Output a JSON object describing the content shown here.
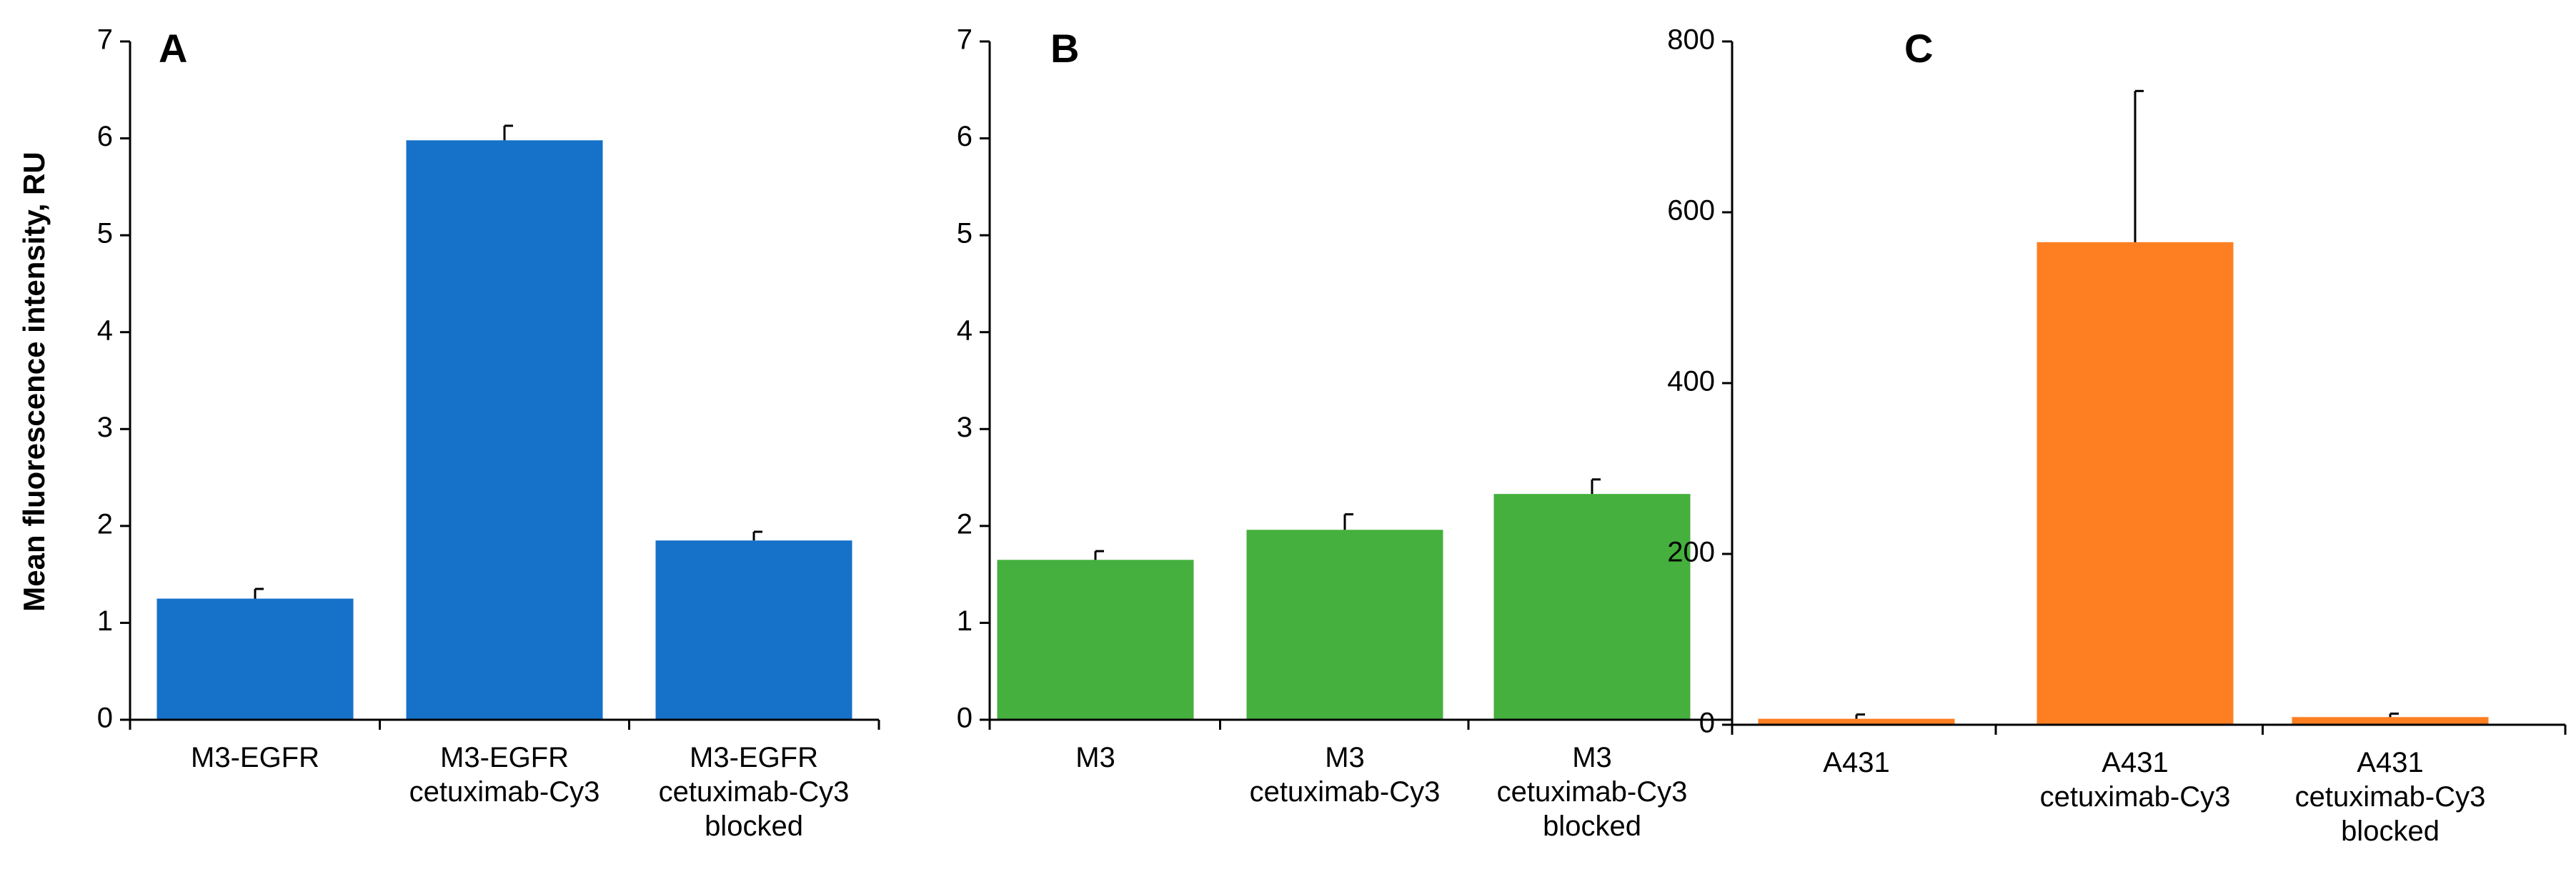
{
  "figure": {
    "ylabel": "Mean fluorescence intensity, RU"
  },
  "colors": {
    "panel_a": "#1671c9",
    "panel_b": "#45b03d",
    "panel_c": "#fd7f22"
  },
  "chart_data": [
    {
      "type": "bar",
      "panel": "A",
      "ylabel": "Mean fluorescence intensity, RU",
      "ylim": [
        0,
        7
      ],
      "yticks": [
        "0",
        "1",
        "2",
        "3",
        "4",
        "5",
        "6",
        "7"
      ],
      "categories": [
        [
          "M3-EGFR"
        ],
        [
          "M3-EGFR",
          "cetuximab-Cy3"
        ],
        [
          "M3-EGFR",
          "cetuximab-Cy3",
          "blocked"
        ]
      ],
      "values": [
        1.25,
        5.98,
        1.85
      ],
      "errors": [
        0.1,
        0.15,
        0.09
      ]
    },
    {
      "type": "bar",
      "panel": "B",
      "ylabel": "",
      "ylim": [
        0,
        7
      ],
      "yticks": [
        "0",
        "1",
        "2",
        "3",
        "4",
        "5",
        "6",
        "7"
      ],
      "categories": [
        [
          "M3"
        ],
        [
          "M3",
          "cetuximab-Cy3"
        ],
        [
          "M3",
          "cetuximab-Cy3",
          "blocked"
        ]
      ],
      "values": [
        1.65,
        1.96,
        2.33
      ],
      "errors": [
        0.09,
        0.16,
        0.15
      ]
    },
    {
      "type": "bar",
      "panel": "C",
      "ylabel": "",
      "ylim": [
        0,
        800
      ],
      "yticks": [
        "0",
        "200",
        "400",
        "600",
        "800"
      ],
      "categories": [
        [
          "A431"
        ],
        [
          "A431",
          "cetuximab-Cy3"
        ],
        [
          "A431",
          "cetuximab-Cy3",
          "blocked"
        ]
      ],
      "values": [
        7,
        565,
        9
      ],
      "errors": [
        5,
        177,
        4
      ]
    }
  ]
}
